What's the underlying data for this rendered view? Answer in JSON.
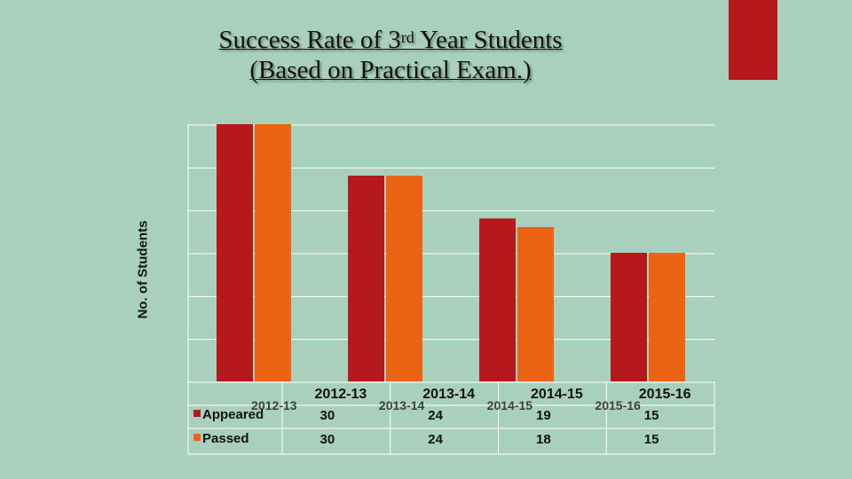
{
  "title": {
    "line1_prefix": "Success Rate of 3",
    "line1_sup": "rd",
    "line1_suffix": " Year Students",
    "line2": "(Based on Practical Exam.)"
  },
  "colors": {
    "background": "#a9d0bd",
    "accent": "#b5191b",
    "appeared": "#b5191b",
    "passed": "#ea6414"
  },
  "chart_data": {
    "type": "bar",
    "title": "Success Rate of 3rd Year Students (Based on Practical Exam.)",
    "xlabel": "",
    "ylabel": "No. of Students",
    "categories": [
      "2012-13",
      "2013-14",
      "2014-15",
      "2015-16"
    ],
    "series": [
      {
        "name": "Appeared",
        "values": [
          30,
          24,
          19,
          15
        ],
        "color": "#b5191b"
      },
      {
        "name": "Passed",
        "values": [
          30,
          24,
          18,
          15
        ],
        "color": "#ea6414"
      }
    ],
    "ylim": [
      0,
      30
    ],
    "grid": true,
    "legend": "data-table",
    "data_table": true
  }
}
